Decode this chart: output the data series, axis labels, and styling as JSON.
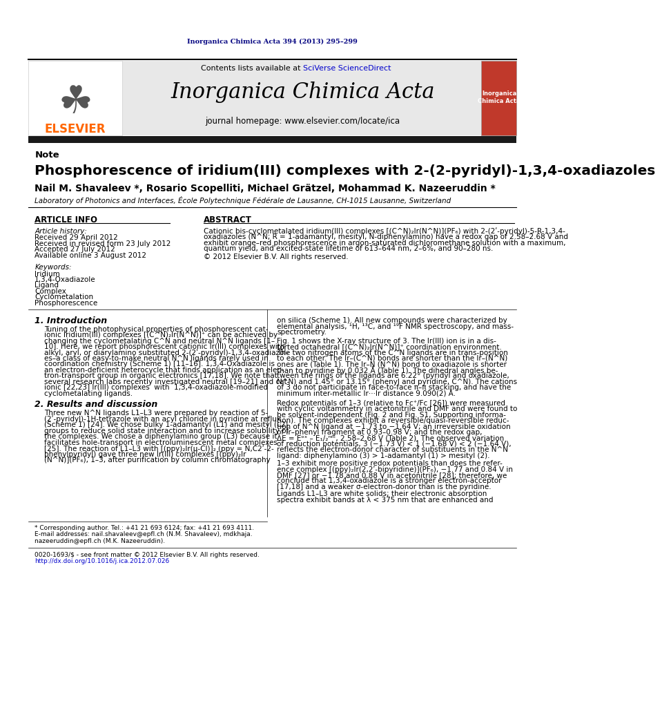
{
  "page_color": "#ffffff",
  "top_journal_text": "Inorganica Chimica Acta 394 (2013) 295–299",
  "top_journal_color": "#000080",
  "header_bg": "#e8e8e8",
  "contents_text": "Contents lists available at ",
  "sciverse_text": "SciVerse ScienceDirect",
  "sciverse_color": "#0000cc",
  "journal_title": "Inorganica Chimica Acta",
  "journal_homepage": "journal homepage: www.elsevier.com/locate/ica",
  "elsevier_color": "#ff6600",
  "header_bar_color": "#1a1a1a",
  "note_label": "Note",
  "paper_title": "Phosphorescence of iridium(III) complexes with 2-(2-pyridyl)-1,3,4-oxadiazoles",
  "authors": "Nail M. Shavaleev *, Rosario Scopelliti, Michael Grätzel, Mohammad K. Nazeeruddin *",
  "affiliation": "Laboratory of Photonics and Interfaces, École Polytechnique Fédérale de Lausanne, CH-1015 Lausanne, Switzerland",
  "article_info_header": "ARTICLE INFO",
  "abstract_header": "ABSTRACT",
  "article_history_label": "Article history:",
  "received1": "Received 29 April 2012",
  "received2": "Received in revised form 23 July 2012",
  "accepted": "Accepted 27 July 2012",
  "available": "Available online 3 August 2012",
  "keywords_label": "Keywords:",
  "keywords": [
    "Iridium",
    "1,3,4-Oxadiazole",
    "Ligand",
    "Complex",
    "Cyclometalation",
    "Phosphorescence"
  ],
  "abstract_text_lines": [
    "Cationic bis-cyclometalated iridium(III) complexes [(C^N)₂Ir(N^N)](PF₆) with 2-(2ʹ-pyridyl)-5-R-1,3,4-",
    "oxadiazoles (N^N; R = 1-adamantyl, mesityl, N-diphenylamino) have a redox gap of 2.58–2.68 V and",
    "exhibit orange–red phosphorescence in argon-saturated dichloromethane solution with a maximum,",
    "quantum yield, and excited-state lifetime of 613–644 nm, 2–6%, and 90–280 ns."
  ],
  "copyright_text": "© 2012 Elsevier B.V. All rights reserved.",
  "intro_header": "1. Introduction",
  "results_header": "2. Results and discussion",
  "intro_lines": [
    "Tuning of the photophysical properties of phosphorescent cat-",
    "ionic iridium(III) complexes [(C^N)₂Ir(N^N)]⁺ can be achieved by",
    "changing the cyclometalating C^N and neutral N^N ligands [1–",
    "10]. Here, we report phosphorescent cationic Ir(III) complexes with",
    "alkyl, aryl, or diarylamino substituted 2-(2ʹ-pyridyl)-1,3,4-oxadiazol-",
    "es–a class of easy-to-make neutral N^N ligands rarely used in",
    "coordination chemistry (Scheme 1) [11–16]. 1,3,4-Oxadiazole is",
    "an electron-deficient heterocycle that finds application as an elec-",
    "tron-transport group in organic electronics [17,18]. We note that",
    "several research labs recently investigated neutral [19–21] and cat-",
    "ionic [22,23] Ir(III) complexes  with  1,3,4-oxadiazole-modified",
    "cyclometalating ligands."
  ],
  "results_lines": [
    "Three new N^N ligands L1–L3 were prepared by reaction of 5-",
    "(2ʹ-pyridyl)-1H-tetrazole with an acyl chloride in pyridine at reflux",
    "(Scheme 1) [24]. We chose bulky 1-adamantyl (L1) and mesityl (L2)",
    "groups to reduce solid state interaction and to increase solubility of",
    "the complexes. We chose a diphenylamino group (L3) because it",
    "facilitates hole-transport in electroluminescent metal complexes",
    "[25]. The reaction of L1–L3 with [(ppy)₂Ir(μ-Cl)]₂ (ppy = N,C2ʹ-2-",
    "phenylpyridyl) gave three new Ir(III) complexes [(ppy)₂Ir",
    "(N^N)](PF₆), 1–3, after purification by column chromatography"
  ],
  "right_lines1": [
    "on silica (Scheme 1). All new compounds were characterized by",
    "elemental analysis, ¹H, ¹³C, and ¹⁹F NMR spectroscopy, and mass-",
    "spectrometry."
  ],
  "right_lines2": [
    "Fig. 1 shows the X-ray structure of 3. The Ir(III) ion is in a dis-",
    "torted octahedral [(C^N)₂Ir(N^N)]⁺ coordination environment.",
    "The two nitrogen atoms of the C^N ligands are in trans-position",
    "to each other. The Ir–(C^N) bonds are shorter than the Ir–(N^N)",
    "ones are (Table 1). The Ir–N (N^N) bond to oxadiazole is shorter",
    "than to pyridine by 0.032 Å (Table 1). The dihedral angles be-",
    "tween the rings of the ligands are 6.22° (pyridyl and oxadiazole,",
    "N^N) and 1.45° or 13.15° (phenyl and pyridine, C^N). The cations",
    "of 3 do not participate in face-to-face π–π stacking, and have the",
    "minimum inter-metallic Ir···Ir distance 9.090(2) Å."
  ],
  "right_lines3": [
    "Redox potentials of 1–3 (relative to Fc⁺/Fc [26]) were measured",
    "with cyclic voltammetry in acetonitrile and DMF and were found to",
    "be solvent-independent (Fig. 2 and Fig. S1, Supporting informa-",
    "tion). The complexes exhibit a reversible/quasi-reversible reduc-",
    "tion of N^N ligand at −1.73 to −1.64 V; an irreversible oxidation",
    "of Ir–phenyl fragment at 0.93–0.98 V; and the redox gap,",
    "ΔE = Eᵒˣ – E₁/₂ʳᵉᶜ, 2.58–2.68 V (Table 2). The observed variation",
    "of reduction potentials, 3 (−1.73 V) < 1 (−1.68 V) < 2 (−1.64 V),",
    "reflects the electron-donor character of substituents in the N^N",
    "ligand: diphenylamino (3) > 1-adamantyl (1) > mesityl (2)."
  ],
  "right_lines4": [
    "1–3 exhibit more positive redox potentials than does the refer-",
    "ence complex [(ppy)₂Ir(2,2ʹ-bipyridine)](PF₆), −1.77 and 0.84 V in",
    "DMF [27] or −1.78 and 0.88 V in acetonitrile [28]; therefore, we",
    "conclude that 1,3,4-oxadiazole is a stronger electron-acceptor",
    "[17,18] and a weaker σ-electron-donor than is the pyridine."
  ],
  "right_lines5": [
    "Ligands L1–L3 are white solids; their electronic absorption",
    "spectra exhibit bands at λ < 375 nm that are enhanced and"
  ],
  "footnote1": "* Corresponding author. Tel.: +41 21 693 6124; fax: +41 21 693 4111.",
  "footnote2": "E-mail addresses: nail.shavaleev@epfl.ch (N.M. Shavaleev), mdkhaja.",
  "footnote2b": "nazeeruddin@epfl.ch (M.K. Nazeeruddin).",
  "footnote3": "0020-1693/$ - see front matter © 2012 Elsevier B.V. All rights reserved.",
  "footnote4": "http://dx.doi.org/10.1016/j.ica.2012.07.026"
}
